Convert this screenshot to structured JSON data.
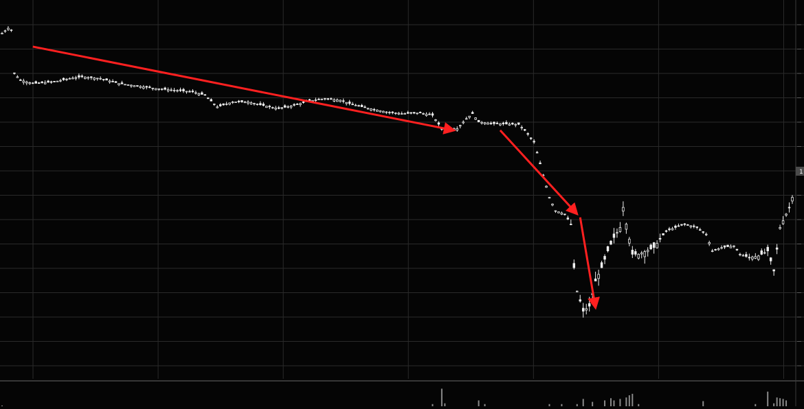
{
  "chart_data": {
    "type": "candlestick",
    "grid": true,
    "price_axis_side": "right",
    "price_axis_marker": "1",
    "ylim": [
      0,
      100
    ],
    "volume_ylim": [
      0,
      30
    ],
    "colors": {
      "background": "#050505",
      "grid": "#2a2a2a",
      "candle": "#f0f0f0",
      "arrow": "#ff2020",
      "volume": "#8a8a8a",
      "axis_marker_bg": "#4a4a4a"
    },
    "close_path": [
      [
        0,
        95
      ],
      [
        2,
        96.5
      ],
      [
        3,
        96
      ],
      [
        4,
        83
      ],
      [
        6,
        81
      ],
      [
        10,
        80
      ],
      [
        17,
        80.5
      ],
      [
        22,
        81.5
      ],
      [
        26,
        82
      ],
      [
        32,
        81.5
      ],
      [
        38,
        80
      ],
      [
        50,
        78.5
      ],
      [
        62,
        77.5
      ],
      [
        66,
        76.5
      ],
      [
        70,
        73
      ],
      [
        75,
        74.5
      ],
      [
        80,
        74.5
      ],
      [
        87,
        73
      ],
      [
        90,
        72.5
      ],
      [
        95,
        73.5
      ],
      [
        100,
        74.8
      ],
      [
        105,
        75.5
      ],
      [
        110,
        75
      ],
      [
        113,
        74
      ],
      [
        118,
        72.8
      ],
      [
        125,
        71.5
      ],
      [
        130,
        71
      ],
      [
        136,
        71.2
      ],
      [
        140,
        70.5
      ],
      [
        143,
        66.5
      ],
      [
        148,
        66.5
      ],
      [
        151,
        69.5
      ],
      [
        153,
        71
      ],
      [
        155,
        68.5
      ],
      [
        160,
        68
      ],
      [
        168,
        67.8
      ],
      [
        170,
        66
      ],
      [
        173,
        62.5
      ],
      [
        175,
        56
      ],
      [
        178,
        46
      ],
      [
        180,
        42
      ],
      [
        183,
        41
      ],
      [
        185,
        38
      ],
      [
        186,
        25
      ],
      [
        187,
        18
      ],
      [
        189,
        12
      ],
      [
        191,
        13.5
      ],
      [
        193,
        21
      ],
      [
        195,
        25
      ],
      [
        197,
        30
      ],
      [
        199,
        34
      ],
      [
        201,
        37
      ],
      [
        202,
        43
      ],
      [
        203,
        38
      ],
      [
        205,
        29
      ],
      [
        207,
        29
      ],
      [
        212,
        31
      ],
      [
        216,
        36
      ],
      [
        222,
        38
      ],
      [
        226,
        37
      ],
      [
        229,
        35
      ],
      [
        231,
        30
      ],
      [
        234,
        31
      ],
      [
        238,
        31.5
      ],
      [
        240,
        29
      ],
      [
        243,
        28
      ],
      [
        246,
        28.5
      ],
      [
        249,
        30
      ],
      [
        251,
        24
      ],
      [
        253,
        37
      ],
      [
        256,
        43
      ],
      [
        257,
        46
      ]
    ],
    "candle_count": 258,
    "volume": [
      {
        "i": 0,
        "v": 1
      },
      {
        "i": 140,
        "v": 3
      },
      {
        "i": 143,
        "v": 24
      },
      {
        "i": 144,
        "v": 4
      },
      {
        "i": 155,
        "v": 8
      },
      {
        "i": 157,
        "v": 3
      },
      {
        "i": 178,
        "v": 3
      },
      {
        "i": 182,
        "v": 3
      },
      {
        "i": 187,
        "v": 3
      },
      {
        "i": 189,
        "v": 10
      },
      {
        "i": 192,
        "v": 6
      },
      {
        "i": 196,
        "v": 8
      },
      {
        "i": 198,
        "v": 11
      },
      {
        "i": 199,
        "v": 8
      },
      {
        "i": 201,
        "v": 10
      },
      {
        "i": 203,
        "v": 12
      },
      {
        "i": 204,
        "v": 15
      },
      {
        "i": 205,
        "v": 17
      },
      {
        "i": 207,
        "v": 3
      },
      {
        "i": 228,
        "v": 7
      },
      {
        "i": 245,
        "v": 3
      },
      {
        "i": 249,
        "v": 20
      },
      {
        "i": 251,
        "v": 4
      },
      {
        "i": 252,
        "v": 12
      },
      {
        "i": 253,
        "v": 11
      },
      {
        "i": 254,
        "v": 10
      },
      {
        "i": 255,
        "v": 8
      }
    ],
    "annotations": [
      {
        "type": "arrow",
        "from": [
          10,
          91
        ],
        "to": [
          147,
          66
        ]
      },
      {
        "type": "arrow",
        "from": [
          162,
          66
        ],
        "to": [
          187,
          41
        ]
      },
      {
        "type": "arrow",
        "from": [
          188,
          40
        ],
        "to": [
          193,
          13
        ]
      }
    ]
  }
}
